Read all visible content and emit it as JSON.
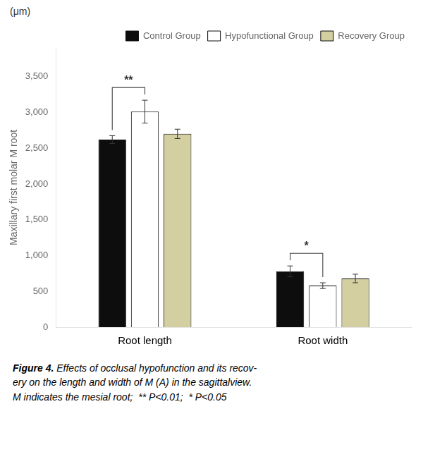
{
  "chart_data": {
    "type": "bar",
    "categories": [
      "Root length",
      "Root width"
    ],
    "series": [
      {
        "name": "Control Group",
        "color": "#0d0d0d",
        "values": [
          2620,
          780
        ],
        "errors": [
          55,
          75
        ]
      },
      {
        "name": "Hypofunctional Group",
        "color": "#ffffff",
        "values": [
          3010,
          580
        ],
        "errors": [
          160,
          40
        ]
      },
      {
        "name": "Recovery Group",
        "color": "#d4cfA0",
        "values": [
          2700,
          680
        ],
        "errors": [
          65,
          60
        ]
      }
    ],
    "ylabel": "Maxillary first molar M root",
    "y_unit": "(μm)",
    "ylim": [
      0,
      3900
    ],
    "yticks": [
      0,
      500,
      1000,
      1500,
      2000,
      2500,
      3000,
      3500
    ],
    "grid": false,
    "legend": "upper right",
    "annotations": [
      {
        "text": "**",
        "category": "Root length",
        "from": "Control Group",
        "to": "Hypofunctional Group"
      },
      {
        "text": "*",
        "category": "Root width",
        "from": "Control Group",
        "to": "Hypofunctional Group"
      }
    ],
    "caption_label": "Figure 4.",
    "caption": " Effects of occlusal hypofunction and its recov-\nery on the length and width of M (A) in the sagittalview.\nM indicates the mesial root;  ** P<0.01;  * P<0.05"
  }
}
